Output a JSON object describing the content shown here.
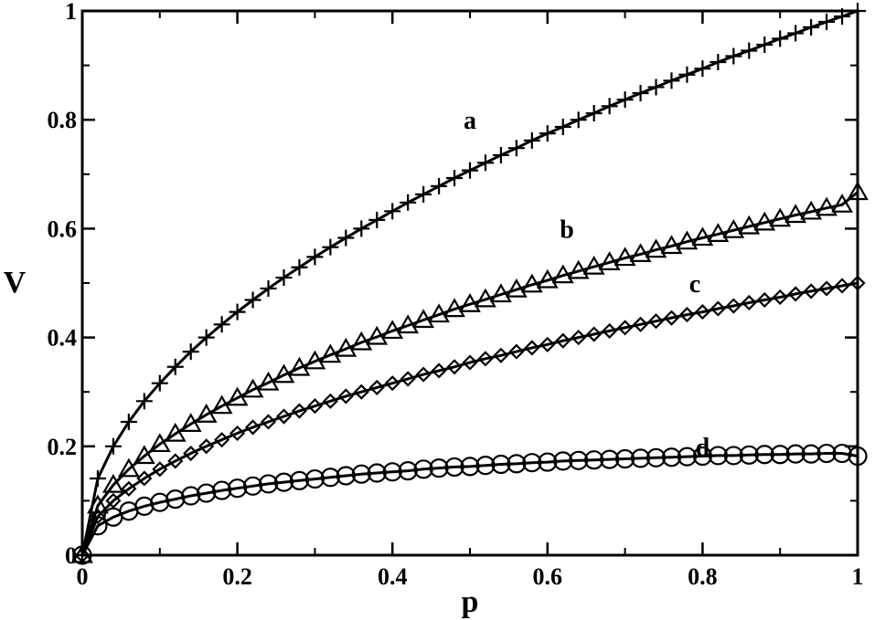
{
  "chart_data": {
    "type": "line",
    "title": "",
    "xlabel": "p",
    "ylabel": "V",
    "xlim": [
      0,
      1
    ],
    "ylim": [
      0,
      1
    ],
    "grid": false,
    "legend": "none",
    "xticks": [
      "0",
      "0.2",
      "0.4",
      "0.6",
      "0.8",
      "1"
    ],
    "yticks": [
      "0",
      "0.2",
      "0.4",
      "0.6",
      "0.8",
      "1"
    ],
    "x": [
      0,
      0.02,
      0.04,
      0.06,
      0.08,
      0.1,
      0.12,
      0.14,
      0.16,
      0.18,
      0.2,
      0.22,
      0.24,
      0.26,
      0.28,
      0.3,
      0.32,
      0.34,
      0.36,
      0.38,
      0.4,
      0.42,
      0.44,
      0.46,
      0.48,
      0.5,
      0.52,
      0.54,
      0.56,
      0.58,
      0.6,
      0.62,
      0.64,
      0.66,
      0.68,
      0.7,
      0.72,
      0.74,
      0.76,
      0.78,
      0.8,
      0.82,
      0.84,
      0.86,
      0.88,
      0.9,
      0.92,
      0.94,
      0.96,
      0.98,
      1
    ],
    "series": [
      {
        "name": "a",
        "marker": "plus",
        "values": [
          0,
          0.141,
          0.2,
          0.245,
          0.283,
          0.316,
          0.346,
          0.374,
          0.4,
          0.424,
          0.447,
          0.469,
          0.49,
          0.51,
          0.529,
          0.548,
          0.566,
          0.583,
          0.6,
          0.616,
          0.632,
          0.648,
          0.663,
          0.678,
          0.693,
          0.707,
          0.721,
          0.735,
          0.748,
          0.762,
          0.775,
          0.787,
          0.8,
          0.812,
          0.825,
          0.837,
          0.849,
          0.86,
          0.872,
          0.883,
          0.894,
          0.906,
          0.917,
          0.927,
          0.938,
          0.949,
          0.959,
          0.97,
          0.98,
          0.99,
          1
        ]
      },
      {
        "name": "b",
        "marker": "triangle",
        "values": [
          0,
          0.091,
          0.129,
          0.158,
          0.182,
          0.204,
          0.223,
          0.241,
          0.258,
          0.274,
          0.289,
          0.304,
          0.317,
          0.331,
          0.344,
          0.356,
          0.368,
          0.379,
          0.391,
          0.401,
          0.412,
          0.422,
          0.432,
          0.442,
          0.452,
          0.461,
          0.47,
          0.479,
          0.488,
          0.497,
          0.505,
          0.514,
          0.522,
          0.53,
          0.538,
          0.546,
          0.553,
          0.561,
          0.568,
          0.576,
          0.583,
          0.59,
          0.597,
          0.604,
          0.611,
          0.618,
          0.625,
          0.631,
          0.638,
          0.644,
          0.667
        ]
      },
      {
        "name": "c",
        "marker": "diamond",
        "values": [
          0,
          0.071,
          0.1,
          0.122,
          0.141,
          0.158,
          0.173,
          0.187,
          0.2,
          0.212,
          0.224,
          0.235,
          0.245,
          0.255,
          0.265,
          0.274,
          0.283,
          0.292,
          0.3,
          0.308,
          0.316,
          0.324,
          0.332,
          0.339,
          0.346,
          0.354,
          0.361,
          0.367,
          0.374,
          0.381,
          0.387,
          0.394,
          0.4,
          0.406,
          0.412,
          0.418,
          0.424,
          0.43,
          0.436,
          0.442,
          0.447,
          0.453,
          0.458,
          0.464,
          0.469,
          0.474,
          0.48,
          0.485,
          0.49,
          0.495,
          0.5
        ]
      },
      {
        "name": "d",
        "marker": "circle",
        "values": [
          0,
          0.054,
          0.07,
          0.081,
          0.09,
          0.097,
          0.103,
          0.109,
          0.114,
          0.119,
          0.123,
          0.127,
          0.131,
          0.134,
          0.137,
          0.14,
          0.143,
          0.146,
          0.149,
          0.151,
          0.153,
          0.155,
          0.158,
          0.16,
          0.162,
          0.163,
          0.165,
          0.167,
          0.168,
          0.17,
          0.171,
          0.173,
          0.174,
          0.175,
          0.176,
          0.177,
          0.178,
          0.179,
          0.18,
          0.181,
          0.182,
          0.183,
          0.183,
          0.184,
          0.185,
          0.185,
          0.186,
          0.186,
          0.187,
          0.187,
          0.182
        ]
      }
    ],
    "annotations": [
      {
        "text": "a",
        "x": 0.5,
        "y": 0.8
      },
      {
        "text": "b",
        "x": 0.625,
        "y": 0.6
      },
      {
        "text": "c",
        "x": 0.79,
        "y": 0.5
      },
      {
        "text": "d",
        "x": 0.8,
        "y": 0.2
      }
    ],
    "colors": {
      "line": "#000000",
      "background": "#ffffff"
    }
  }
}
